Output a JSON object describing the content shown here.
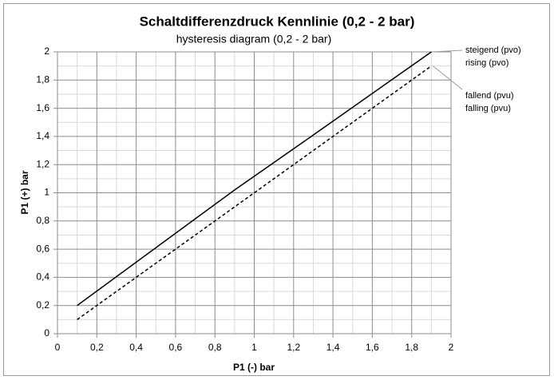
{
  "chart_data": {
    "type": "line",
    "title": "Schaltdifferenzdruck Kennlinie (0,2 - 2 bar)",
    "subtitle": "hysteresis diagram (0,2 - 2 bar)",
    "xlabel": "P1 (-) bar",
    "ylabel": "P1 (+) bar",
    "xlim": [
      0,
      2
    ],
    "ylim": [
      0,
      2
    ],
    "xticks": [
      0,
      {
        "value": 0.2,
        "label": "0,2"
      },
      {
        "value": 0.4,
        "label": "0,4"
      },
      {
        "value": 0.6,
        "label": "0,6"
      },
      {
        "value": 0.8,
        "label": "0,8"
      },
      1,
      {
        "value": 1.2,
        "label": "1,2"
      },
      {
        "value": 1.4,
        "label": "1,4"
      },
      {
        "value": 1.6,
        "label": "1,6"
      },
      {
        "value": 1.8,
        "label": "1,8"
      },
      2
    ],
    "yticks": [
      0,
      {
        "value": 0.2,
        "label": "0,2"
      },
      {
        "value": 0.4,
        "label": "0,4"
      },
      {
        "value": 0.6,
        "label": "0,6"
      },
      {
        "value": 0.8,
        "label": "0,8"
      },
      1,
      {
        "value": 1.2,
        "label": "1,2"
      },
      {
        "value": 1.4,
        "label": "1,4"
      },
      {
        "value": 1.6,
        "label": "1,6"
      },
      {
        "value": 1.8,
        "label": "1,8"
      },
      2
    ],
    "grid": true,
    "minor_grid": true,
    "series": [
      {
        "color": "#000000",
        "dash": false,
        "x": [
          0.1,
          0.9,
          1.3,
          1.9
        ],
        "values": [
          0.2,
          1.02,
          1.41,
          2.0
        ]
      },
      {
        "color": "#000000",
        "dash": true,
        "x": [
          0.1,
          1.9
        ],
        "values": [
          0.1,
          1.9
        ]
      }
    ],
    "annotations": [
      [
        "steigend (pvo)",
        "rising (pvo)"
      ],
      [
        "fallend (pvu)",
        "falling (pvu)"
      ]
    ]
  }
}
